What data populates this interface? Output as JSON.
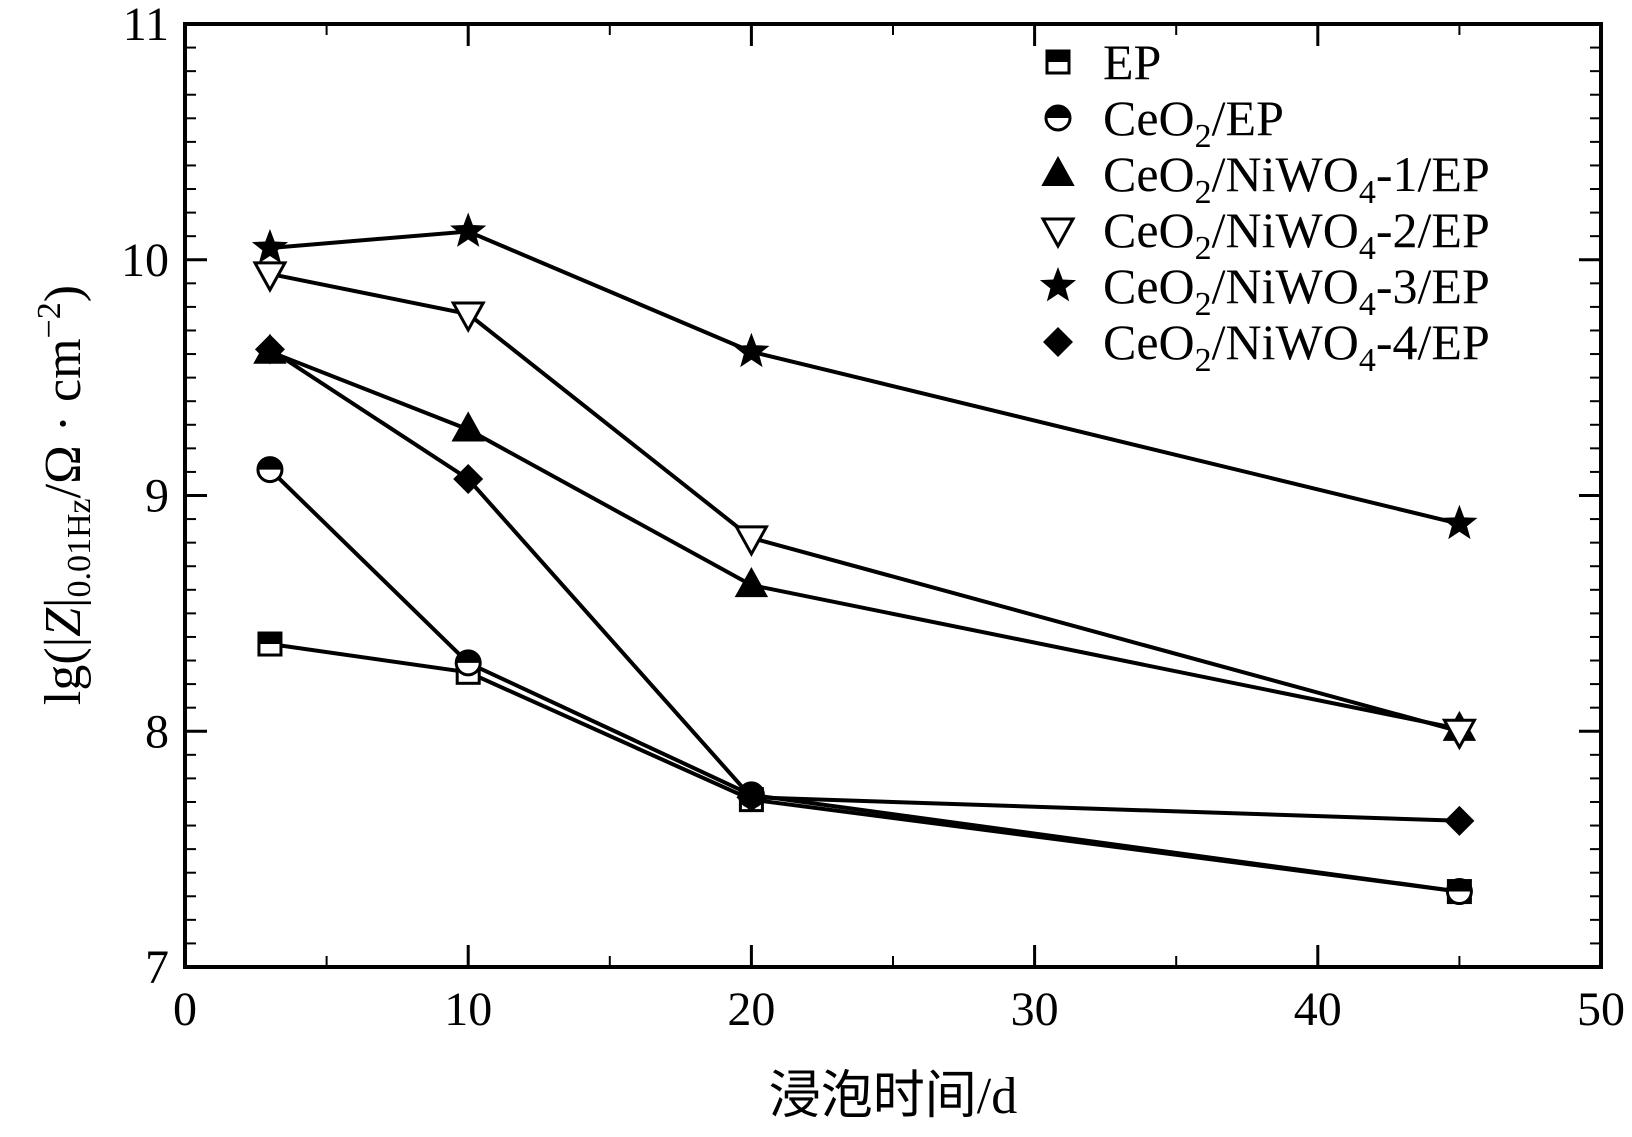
{
  "chart_data": {
    "type": "line",
    "xlabel": "浸泡时间/d",
    "ylabel": {
      "prefix": "lg(|",
      "Z": "Z",
      "bar": "|",
      "sub": "0.01Hz",
      "unit": "/Ω · cm",
      "sup": "−2",
      "close": ")"
    },
    "xlim": [
      0,
      50
    ],
    "ylim": [
      7,
      11
    ],
    "xticks": [
      0,
      10,
      20,
      30,
      40,
      50
    ],
    "yticks": [
      7,
      8,
      9,
      10,
      11
    ],
    "grid": false,
    "legend_position": "top-right",
    "x": [
      3,
      10,
      20,
      45
    ],
    "series": [
      {
        "name": "EP",
        "legend": {
          "base": "EP",
          "parts": []
        },
        "marker": "square-half",
        "values": [
          8.37,
          8.25,
          7.71,
          7.32
        ]
      },
      {
        "name": "CeO2/EP",
        "legend": {
          "base": "CeO",
          "parts": [
            {
              "sub": "2"
            },
            {
              "text": "/EP"
            }
          ]
        },
        "marker": "circle-half",
        "values": [
          9.11,
          8.29,
          7.73,
          7.32
        ]
      },
      {
        "name": "CeO2/NiWO4-1/EP",
        "legend": {
          "base": "CeO",
          "parts": [
            {
              "sub": "2"
            },
            {
              "text": "/NiWO"
            },
            {
              "sub": "4"
            },
            {
              "text": "-1/EP"
            }
          ]
        },
        "marker": "triangle-up-filled",
        "values": [
          9.61,
          9.28,
          8.62,
          8.01
        ]
      },
      {
        "name": "CeO2/NiWO4-2/EP",
        "legend": {
          "base": "CeO",
          "parts": [
            {
              "sub": "2"
            },
            {
              "text": "/NiWO"
            },
            {
              "sub": "4"
            },
            {
              "text": "-2/EP"
            }
          ]
        },
        "marker": "triangle-down-open",
        "values": [
          9.94,
          9.77,
          8.82,
          8.0
        ]
      },
      {
        "name": "CeO2/NiWO4-3/EP",
        "legend": {
          "base": "CeO",
          "parts": [
            {
              "sub": "2"
            },
            {
              "text": "/NiWO"
            },
            {
              "sub": "4"
            },
            {
              "text": "-3/EP"
            }
          ]
        },
        "marker": "star-filled",
        "values": [
          10.05,
          10.12,
          9.61,
          8.88
        ]
      },
      {
        "name": "CeO2/NiWO4-4/EP",
        "legend": {
          "base": "CeO",
          "parts": [
            {
              "sub": "2"
            },
            {
              "text": "/NiWO"
            },
            {
              "sub": "4"
            },
            {
              "text": "-4/EP"
            }
          ]
        },
        "marker": "diamond-filled",
        "values": [
          9.62,
          9.07,
          7.72,
          7.62
        ]
      }
    ]
  }
}
